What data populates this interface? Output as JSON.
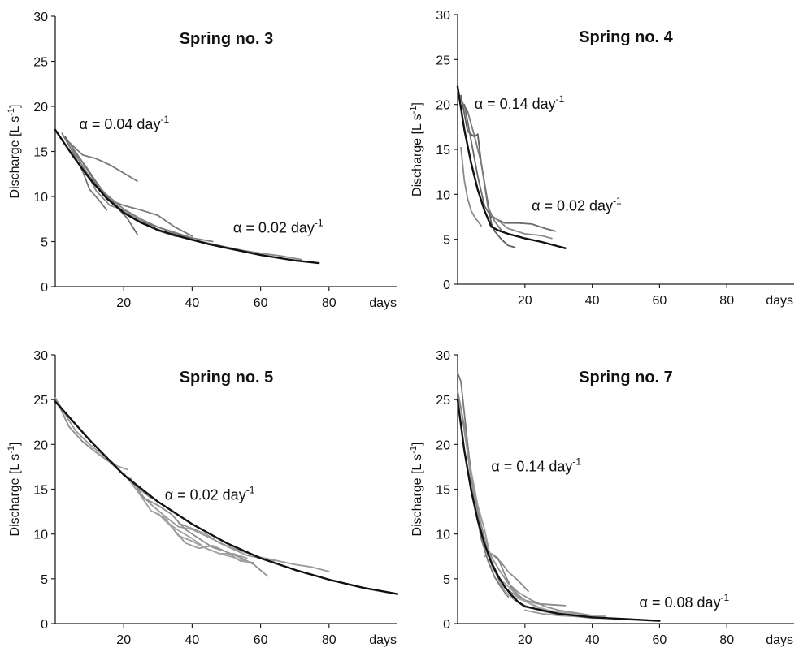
{
  "chart_data": [
    {
      "type": "line",
      "title": "Spring no. 3",
      "xlabel": "days",
      "ylabel": "Discharge [L s-1]",
      "ylabel_parts": {
        "main": "Discharge [L s",
        "sup": "-1",
        "close": "]"
      },
      "xlim": [
        0,
        100
      ],
      "ylim": [
        0,
        30
      ],
      "xticks": [
        20,
        40,
        60,
        80
      ],
      "yticks": [
        0,
        5,
        10,
        15,
        20,
        25,
        30
      ],
      "grid": false,
      "annotations": [
        {
          "text": "α = 0.04 day",
          "sup": "-1",
          "x": 7,
          "y": 17.5
        },
        {
          "text": "α = 0.02 day",
          "sup": "-1",
          "x": 52,
          "y": 6.0
        }
      ],
      "model": {
        "name": "",
        "color": "#111111",
        "x": [
          0,
          5,
          10,
          15,
          20,
          25,
          30,
          35,
          40,
          45,
          50,
          55,
          60,
          65,
          70,
          77
        ],
        "y": [
          17.4,
          14.6,
          12.0,
          9.8,
          8.2,
          7.1,
          6.3,
          5.7,
          5.2,
          4.7,
          4.3,
          3.9,
          3.5,
          3.2,
          2.9,
          2.6
        ]
      },
      "series": [
        {
          "color": "#777777",
          "x": [
            3,
            8,
            12,
            16,
            20,
            24
          ],
          "y": [
            16.4,
            14.6,
            14.2,
            13.5,
            12.6,
            11.7
          ]
        },
        {
          "color": "#777777",
          "x": [
            2,
            5,
            8,
            10,
            13,
            15
          ],
          "y": [
            17,
            15.0,
            12.8,
            10.8,
            9.5,
            8.5
          ]
        },
        {
          "color": "#6f6f6f",
          "x": [
            3,
            6,
            9,
            12,
            15,
            18,
            21,
            24
          ],
          "y": [
            16.6,
            14.8,
            13.3,
            11.6,
            10.0,
            8.8,
            7.6,
            5.8
          ]
        },
        {
          "color": "#7a7a7a",
          "x": [
            4,
            8,
            12,
            16,
            20,
            25,
            30,
            35,
            40
          ],
          "y": [
            16.0,
            13.8,
            11.4,
            9.6,
            9.0,
            8.5,
            7.9,
            6.6,
            5.6
          ]
        },
        {
          "color": "#808080",
          "x": [
            5,
            10,
            15,
            20,
            25,
            30,
            35,
            40,
            46
          ],
          "y": [
            15.2,
            12.2,
            10.2,
            8.6,
            7.5,
            6.6,
            6.0,
            5.4,
            5.0
          ]
        },
        {
          "color": "#8a8a8a",
          "x": [
            8,
            12,
            16,
            20,
            25,
            30,
            35,
            38
          ],
          "y": [
            13.5,
            10.6,
            9.0,
            8.5,
            7.4,
            6.2,
            5.6,
            5.5
          ]
        },
        {
          "color": "#777777",
          "x": [
            10,
            15,
            20,
            25,
            30,
            35,
            40
          ],
          "y": [
            12.0,
            10.0,
            8.3,
            7.2,
            6.6,
            5.9,
            5.4
          ]
        },
        {
          "color": "#8a8a8a",
          "x": [
            38,
            45,
            50,
            55,
            60,
            66,
            72
          ],
          "y": [
            5.4,
            4.8,
            4.4,
            4.0,
            3.7,
            3.4,
            3.0
          ]
        }
      ]
    },
    {
      "type": "line",
      "title": "Spring no. 4",
      "xlabel": "days",
      "ylabel": "Discharge [L s-1]",
      "ylabel_parts": {
        "main": "Discharge [L s",
        "sup": "-1",
        "close": "]"
      },
      "xlim": [
        0,
        100
      ],
      "ylim": [
        0,
        30
      ],
      "xticks": [
        20,
        40,
        60,
        80
      ],
      "yticks": [
        0,
        5,
        10,
        15,
        20,
        25,
        30
      ],
      "grid": false,
      "annotations": [
        {
          "text": "α = 0.14 day",
          "sup": "-1",
          "x": 5,
          "y": 19.5
        },
        {
          "text": "α = 0.02 day",
          "sup": "-1",
          "x": 22,
          "y": 8.2
        }
      ],
      "model": {
        "name": "",
        "color": "#111111",
        "x": [
          0,
          2,
          4,
          6,
          8,
          10,
          12,
          15,
          20,
          25,
          30,
          32
        ],
        "y": [
          22,
          17.2,
          13.5,
          10.5,
          8.2,
          6.4,
          6.0,
          5.6,
          5.1,
          4.7,
          4.2,
          4.0
        ]
      },
      "series": [
        {
          "color": "#8a8a8a",
          "x": [
            1,
            2,
            3,
            4,
            5,
            6,
            7
          ],
          "y": [
            15.2,
            11.5,
            9.5,
            8.2,
            7.5,
            7.0,
            6.5
          ]
        },
        {
          "color": "#5f5f5f",
          "x": [
            1,
            3,
            5,
            6,
            7,
            9,
            10,
            11,
            13,
            15,
            17
          ],
          "y": [
            21,
            17,
            16.4,
            16.7,
            13.5,
            9.0,
            6.8,
            5.9,
            5.0,
            4.3,
            4.1
          ]
        },
        {
          "color": "#7a7a7a",
          "x": [
            1,
            3,
            5,
            7,
            9,
            11,
            13
          ],
          "y": [
            20.5,
            19.2,
            16.5,
            13.5,
            8.6,
            7.0,
            6.0
          ]
        },
        {
          "color": "#6a6a6a",
          "x": [
            2,
            4,
            6,
            8,
            10,
            14,
            18,
            22,
            26,
            29
          ],
          "y": [
            20,
            16,
            12,
            8.7,
            7.5,
            6.8,
            6.8,
            6.7,
            6.2,
            5.9
          ]
        },
        {
          "color": "#8a8a8a",
          "x": [
            10,
            15,
            20,
            25,
            28
          ],
          "y": [
            7.7,
            6.2,
            5.6,
            5.4,
            5.1
          ]
        }
      ]
    },
    {
      "type": "line",
      "title": "Spring no. 5",
      "xlabel": "days",
      "ylabel": "Discharge [L s-1]",
      "ylabel_parts": {
        "main": "Discharge [L s",
        "sup": "-1",
        "close": "]"
      },
      "xlim": [
        0,
        100
      ],
      "ylim": [
        0,
        30
      ],
      "xticks": [
        20,
        40,
        60,
        80
      ],
      "yticks": [
        0,
        5,
        10,
        15,
        20,
        25,
        30
      ],
      "grid": false,
      "annotations": [
        {
          "text": "α = 0.02 day",
          "sup": "-1",
          "x": 32,
          "y": 13.8
        }
      ],
      "model": {
        "name": "",
        "color": "#111111",
        "x": [
          0,
          10,
          20,
          30,
          40,
          50,
          60,
          70,
          80,
          90,
          100
        ],
        "y": [
          24.8,
          20.5,
          16.6,
          13.6,
          11.1,
          9.0,
          7.3,
          6.0,
          4.9,
          4.0,
          3.3
        ]
      },
      "series": [
        {
          "color": "#999999",
          "x": [
            0,
            3,
            6,
            10,
            14,
            18,
            21
          ],
          "y": [
            25.2,
            23.3,
            21.5,
            20.0,
            18.8,
            17.6,
            17.2
          ]
        },
        {
          "color": "#8c8c8c",
          "x": [
            1,
            4,
            8,
            12,
            16,
            20,
            24,
            28
          ],
          "y": [
            24.4,
            22.0,
            20.3,
            19.1,
            18.0,
            16.6,
            15.2,
            14.0
          ]
        },
        {
          "color": "#9a9a9a",
          "x": [
            20,
            24,
            28,
            32,
            36,
            40,
            45,
            50,
            55,
            60,
            65,
            70,
            75,
            80
          ],
          "y": [
            16.8,
            14.8,
            13.3,
            12.0,
            10.8,
            10.5,
            9.6,
            8.7,
            8.0,
            7.4,
            7.0,
            6.6,
            6.3,
            5.8
          ]
        },
        {
          "color": "#8f8f8f",
          "x": [
            22,
            26,
            30,
            34,
            38,
            42,
            46,
            50,
            54,
            58,
            62
          ],
          "y": [
            16.2,
            14.0,
            13.2,
            12.2,
            10.5,
            9.5,
            8.5,
            8.0,
            7.4,
            6.6,
            5.3
          ]
        },
        {
          "color": "#a0a0a0",
          "x": [
            24,
            28,
            32,
            36,
            40,
            44,
            48,
            52,
            56
          ],
          "y": [
            14.8,
            12.6,
            11.8,
            9.8,
            9.2,
            8.4,
            7.8,
            7.8,
            7.3
          ]
        },
        {
          "color": "#989898",
          "x": [
            30,
            34,
            38,
            42,
            46,
            50,
            54,
            58
          ],
          "y": [
            12.3,
            10.8,
            9.0,
            8.4,
            8.7,
            8.0,
            7.0,
            6.8
          ]
        },
        {
          "color": "#a5a5a5",
          "x": [
            32,
            36,
            40,
            44,
            48,
            52,
            56
          ],
          "y": [
            11.5,
            10.4,
            9.5,
            8.4,
            7.8,
            7.4,
            6.9
          ]
        },
        {
          "color": "#9a9a9a",
          "x": [
            36,
            40,
            44,
            48,
            52,
            56,
            60,
            64
          ],
          "y": [
            11.2,
            10.6,
            10.0,
            9.0,
            8.3,
            7.6,
            7.3,
            7.0
          ]
        }
      ]
    },
    {
      "type": "line",
      "title": "Spring no. 7",
      "xlabel": "days",
      "ylabel": "Discharge [L s-1]",
      "ylabel_parts": {
        "main": "Discharge [L s",
        "sup": "-1",
        "close": "]"
      },
      "xlim": [
        0,
        100
      ],
      "ylim": [
        0,
        30
      ],
      "xticks": [
        20,
        40,
        60,
        80
      ],
      "yticks": [
        0,
        5,
        10,
        15,
        20,
        25,
        30
      ],
      "grid": false,
      "annotations": [
        {
          "text": "α = 0.14 day",
          "sup": "-1",
          "x": 10,
          "y": 17.0
        },
        {
          "text": "α = 0.08 day",
          "sup": "-1",
          "x": 54,
          "y": 1.8
        }
      ],
      "model": {
        "name": "",
        "color": "#111111",
        "x": [
          0,
          2,
          4,
          6,
          8,
          10,
          12,
          14,
          16,
          18,
          20,
          25,
          30,
          35,
          40,
          45,
          50,
          55,
          60
        ],
        "y": [
          25.0,
          19.3,
          14.9,
          11.5,
          8.9,
          6.8,
          5.3,
          4.1,
          3.2,
          2.4,
          1.9,
          1.5,
          1.1,
          0.9,
          0.7,
          0.6,
          0.5,
          0.4,
          0.3
        ]
      },
      "series": [
        {
          "color": "#777777",
          "x": [
            0,
            1,
            3,
            5,
            7,
            9,
            11,
            13,
            15
          ],
          "y": [
            28,
            27,
            20,
            13.5,
            9.5,
            7.0,
            5.2,
            4.0,
            3.0
          ]
        },
        {
          "color": "#808080",
          "x": [
            0,
            2,
            4,
            6,
            8,
            10,
            12,
            14,
            17,
            20,
            25,
            30
          ],
          "y": [
            26,
            22,
            17,
            12.5,
            9.5,
            7.0,
            5.4,
            4.0,
            3.2,
            2.5,
            1.6,
            1.1
          ]
        },
        {
          "color": "#8c8c8c",
          "x": [
            1,
            3,
            5,
            7,
            9,
            11,
            13,
            15,
            18,
            21
          ],
          "y": [
            24,
            19,
            14.5,
            11,
            8.0,
            7.5,
            6.8,
            5.8,
            4.8,
            3.6
          ]
        },
        {
          "color": "#939393",
          "x": [
            2,
            4,
            6,
            8,
            10,
            12,
            15,
            18,
            22,
            26,
            30,
            35,
            40,
            44
          ],
          "y": [
            22,
            16,
            12,
            9.5,
            7.5,
            6.2,
            4.5,
            3.5,
            2.6,
            1.9,
            1.5,
            1.2,
            0.9,
            0.8
          ]
        },
        {
          "color": "#9c9c9c",
          "x": [
            4,
            6,
            8,
            10,
            12,
            14,
            17,
            20,
            25,
            30,
            35,
            40
          ],
          "y": [
            17,
            13.2,
            10.5,
            7.0,
            5.0,
            3.6,
            2.6,
            2.0,
            1.4,
            1.0,
            0.8,
            0.7
          ]
        },
        {
          "color": "#8a8a8a",
          "x": [
            8,
            10,
            12,
            14,
            16,
            18,
            20,
            24,
            28,
            32
          ],
          "y": [
            7.5,
            7.8,
            7.3,
            5.5,
            4.0,
            3.2,
            2.6,
            2.2,
            2.1,
            2.0
          ]
        },
        {
          "color": "#a2a2a2",
          "x": [
            10,
            12,
            14,
            16,
            18,
            20,
            24,
            28,
            32,
            36,
            40,
            44
          ],
          "y": [
            6.5,
            5.2,
            4.5,
            3.8,
            3.0,
            2.5,
            1.8,
            1.4,
            1.2,
            1.0,
            0.9,
            0.8
          ]
        },
        {
          "color": "#a8a8a8",
          "x": [
            14,
            18,
            22,
            26,
            30,
            34,
            38,
            43
          ],
          "y": [
            3.3,
            2.8,
            2.2,
            1.5,
            1.3,
            1.0,
            0.9,
            0.8
          ]
        },
        {
          "color": "#9a9a9a",
          "x": [
            20,
            25,
            30,
            35,
            40,
            45,
            50,
            55
          ],
          "y": [
            1.5,
            1.1,
            0.9,
            0.8,
            0.6,
            0.6,
            0.5,
            0.4
          ]
        }
      ]
    }
  ]
}
